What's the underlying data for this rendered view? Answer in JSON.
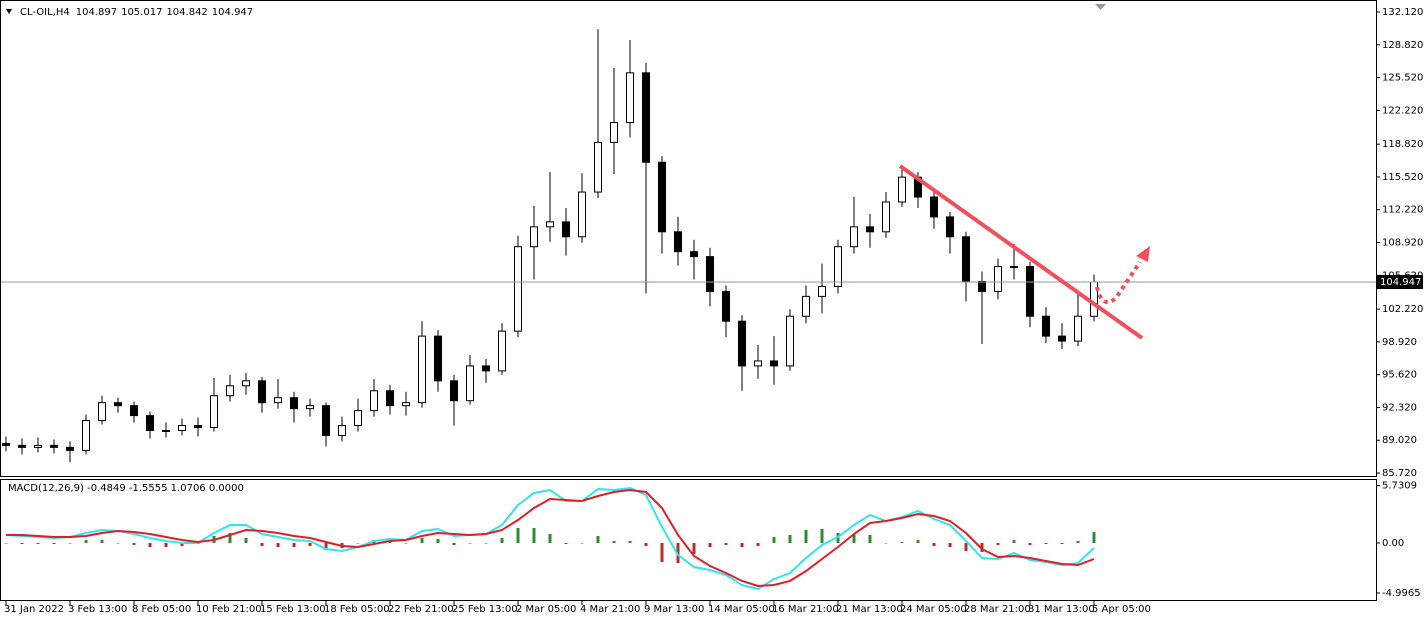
{
  "chart_data": [
    {
      "type": "candlestick",
      "title": "CL-OIL,H4",
      "quote": [
        104.897,
        105.017,
        104.842,
        104.947
      ],
      "open": [
        88.7,
        88.5,
        88.3,
        88.5,
        88.3,
        88.0,
        91.0,
        92.8,
        92.5,
        91.5,
        90.0,
        90.0,
        90.5,
        90.3,
        93.5,
        94.5,
        95.0,
        92.8,
        93.3,
        92.2,
        92.5,
        89.5,
        90.5,
        92.0,
        94.0,
        92.5,
        92.8,
        99.5,
        95.0,
        93.0,
        96.5,
        96.0,
        100.0,
        108.5,
        110.5,
        111.0,
        109.5,
        114.0,
        119.0,
        121.0,
        126.0,
        117.0,
        110.0,
        108.0,
        107.5,
        104.0,
        101.0,
        96.5,
        97.0,
        96.5,
        101.5,
        103.5,
        104.5,
        108.5,
        110.5,
        110.0,
        113.0,
        115.5,
        113.5,
        111.5,
        109.5,
        105.0,
        104.0,
        106.5,
        106.5,
        101.5,
        99.5,
        99.0,
        101.5
      ],
      "high": [
        89.4,
        89.2,
        89.3,
        89.1,
        88.9,
        91.6,
        93.5,
        93.3,
        92.9,
        91.9,
        90.8,
        91.2,
        91.3,
        95.3,
        95.6,
        95.8,
        95.4,
        95.2,
        93.9,
        93.2,
        92.8,
        91.4,
        93.2,
        95.2,
        94.6,
        93.9,
        101.0,
        100.1,
        95.6,
        97.6,
        97.2,
        100.8,
        109.6,
        112.6,
        116.0,
        112.4,
        115.9,
        130.4,
        126.5,
        129.3,
        127.0,
        117.6,
        111.5,
        109.2,
        108.4,
        104.6,
        101.6,
        98.6,
        99.5,
        102.2,
        104.6,
        106.8,
        109.2,
        113.5,
        111.8,
        114.0,
        116.7,
        116.0,
        114.2,
        112.0,
        110.0,
        106.0,
        107.3,
        108.8,
        107.0,
        102.4,
        100.8,
        104.0,
        105.7
      ],
      "low": [
        87.9,
        87.6,
        87.8,
        87.7,
        86.8,
        87.6,
        90.6,
        91.8,
        90.8,
        89.2,
        89.3,
        89.5,
        89.4,
        89.9,
        92.9,
        93.6,
        91.8,
        92.2,
        90.8,
        91.4,
        88.4,
        88.9,
        89.9,
        91.4,
        91.6,
        91.5,
        92.3,
        93.9,
        90.5,
        92.6,
        94.8,
        95.6,
        99.4,
        105.2,
        109.0,
        107.6,
        108.9,
        113.4,
        115.8,
        119.5,
        103.8,
        107.8,
        106.6,
        105.2,
        102.5,
        99.4,
        94.0,
        95.2,
        94.6,
        96.0,
        100.8,
        101.8,
        103.8,
        107.8,
        108.4,
        109.4,
        112.5,
        112.4,
        110.3,
        107.8,
        103.0,
        98.7,
        103.2,
        105.2,
        100.4,
        98.8,
        98.2,
        98.5,
        101.0
      ],
      "close": [
        88.5,
        88.3,
        88.5,
        88.3,
        88.0,
        91.0,
        92.8,
        92.5,
        91.5,
        90.0,
        90.0,
        90.5,
        90.3,
        93.5,
        94.5,
        95.0,
        92.8,
        93.3,
        92.2,
        92.5,
        89.5,
        90.5,
        92.0,
        94.0,
        92.5,
        92.8,
        99.5,
        95.0,
        93.0,
        96.5,
        96.0,
        100.0,
        108.5,
        110.5,
        111.0,
        109.5,
        114.0,
        119.0,
        121.0,
        126.0,
        117.0,
        110.0,
        108.0,
        107.5,
        104.0,
        101.0,
        96.5,
        97.0,
        96.5,
        101.5,
        103.5,
        104.5,
        108.5,
        110.5,
        110.0,
        113.0,
        115.5,
        113.5,
        111.5,
        109.5,
        105.0,
        104.0,
        106.5,
        106.5,
        101.5,
        99.5,
        99.0,
        101.5,
        104.947
      ],
      "last_price": 104.947,
      "ylim": [
        85.42,
        133.23
      ],
      "yticks": [
        {
          "value": 132.12,
          "label": "132.120"
        },
        {
          "value": 128.82,
          "label": "128.820"
        },
        {
          "value": 125.52,
          "label": "125.520"
        },
        {
          "value": 122.22,
          "label": "122.220"
        },
        {
          "value": 118.82,
          "label": "118.820"
        },
        {
          "value": 115.52,
          "label": "115.520"
        },
        {
          "value": 112.22,
          "label": "112.220"
        },
        {
          "value": 108.92,
          "label": "108.920"
        },
        {
          "value": 105.62,
          "label": "105.620"
        },
        {
          "value": 102.22,
          "label": "102.220"
        },
        {
          "value": 98.92,
          "label": "98.920"
        },
        {
          "value": 95.62,
          "label": "95.620"
        },
        {
          "value": 92.32,
          "label": "92.320"
        },
        {
          "value": 89.02,
          "label": "89.020"
        },
        {
          "value": 85.72,
          "label": "85.720"
        }
      ],
      "xticks": [
        {
          "value": 0,
          "label": "31 Jan 2022"
        },
        {
          "value": 4,
          "label": "3 Feb 13:00"
        },
        {
          "value": 8,
          "label": "8 Feb 05:00"
        },
        {
          "value": 12,
          "label": "10 Feb 21:00"
        },
        {
          "value": 16,
          "label": "15 Feb 13:00"
        },
        {
          "value": 20,
          "label": "18 Feb 05:00"
        },
        {
          "value": 24,
          "label": "22 Feb 21:00"
        },
        {
          "value": 28,
          "label": "25 Feb 13:00"
        },
        {
          "value": 32,
          "label": "2 Mar 05:00"
        },
        {
          "value": 36,
          "label": "4 Mar 21:00"
        },
        {
          "value": 40,
          "label": "9 Mar 13:00"
        },
        {
          "value": 44,
          "label": "14 Mar 05:00"
        },
        {
          "value": 48,
          "label": "16 Mar 21:00"
        },
        {
          "value": 52,
          "label": "21 Mar 13:00"
        },
        {
          "value": 56,
          "label": "24 Mar 05:00"
        },
        {
          "value": 60,
          "label": "28 Mar 21:00"
        },
        {
          "value": 64,
          "label": "31 Mar 13:00"
        },
        {
          "value": 68,
          "label": "5 Apr 05:00"
        }
      ],
      "grid": false
    },
    {
      "type": "indicator",
      "title": "MACD(12,26,9) -0.4849 -1.5555 1.0706 0.0000",
      "ylim": [
        -5.7,
        6.3
      ],
      "yticks": [
        5.7309,
        {
          "value": 0,
          "label": "0.00"
        },
        -4.9965
      ],
      "histogram": {
        "color": "#2e8b2e",
        "negative_color": "#c62828",
        "values": [
          0,
          -0.1,
          -0.1,
          -0.1,
          0,
          0.3,
          0.3,
          0,
          -0.2,
          -0.4,
          -0.4,
          -0.3,
          -0.1,
          0.7,
          1.0,
          0.5,
          -0.3,
          -0.4,
          -0.4,
          -0.3,
          -0.7,
          -0.5,
          0,
          0.3,
          0.2,
          0,
          0.5,
          0.4,
          -0.2,
          0,
          0,
          0.5,
          1.5,
          1.5,
          0.9,
          -0.1,
          0,
          0.7,
          0.2,
          0.2,
          -0.3,
          -1.9,
          -2.0,
          -1.1,
          -0.4,
          -0.2,
          -0.4,
          -0.3,
          0.6,
          0.8,
          1.3,
          1.4,
          1.0,
          0.9,
          0.8,
          0,
          0.1,
          0.3,
          -0.3,
          -0.4,
          -0.8,
          -0.9,
          -0.2,
          0.3,
          -0.2,
          -0.1,
          -0.1,
          0.2,
          1.1
        ]
      },
      "series": [
        {
          "color": "#2ee6f0",
          "values": [
            0.8,
            0.7,
            0.6,
            0.5,
            0.6,
            1.0,
            1.3,
            1.2,
            0.9,
            0.5,
            0.2,
            0.0,
            0.0,
            1.0,
            1.8,
            1.8,
            0.9,
            0.6,
            0.3,
            0.2,
            -0.6,
            -0.8,
            -0.4,
            0.2,
            0.4,
            0.3,
            1.2,
            1.4,
            0.7,
            0.8,
            0.9,
            1.8,
            3.8,
            5.0,
            5.3,
            4.2,
            4.2,
            5.4,
            5.3,
            5.5,
            4.8,
            1.6,
            -1.2,
            -2.4,
            -2.7,
            -3.2,
            -4.2,
            -4.6,
            -3.6,
            -3.0,
            -1.5,
            -0.2,
            0.6,
            1.8,
            2.8,
            2.2,
            2.6,
            3.2,
            2.4,
            1.8,
            0.2,
            -1.5,
            -1.6,
            -1.0,
            -1.7,
            -1.9,
            -2.2,
            -2.0,
            -0.5
          ]
        },
        {
          "color": "#e01e28",
          "values": [
            0.8,
            0.8,
            0.7,
            0.6,
            0.6,
            0.7,
            1.0,
            1.2,
            1.1,
            0.9,
            0.6,
            0.3,
            0.1,
            0.3,
            0.8,
            1.3,
            1.2,
            1.0,
            0.7,
            0.5,
            0.1,
            -0.3,
            -0.4,
            -0.1,
            0.2,
            0.3,
            0.7,
            1.0,
            0.9,
            0.8,
            0.9,
            1.3,
            2.3,
            3.5,
            4.4,
            4.3,
            4.2,
            4.7,
            5.1,
            5.3,
            5.1,
            3.5,
            0.8,
            -1.3,
            -2.3,
            -3.0,
            -3.8,
            -4.3,
            -4.2,
            -3.8,
            -2.8,
            -1.6,
            -0.4,
            0.9,
            2.0,
            2.2,
            2.5,
            2.9,
            2.7,
            2.2,
            1.0,
            -0.6,
            -1.4,
            -1.3,
            -1.5,
            -1.8,
            -2.1,
            -2.2,
            -1.6
          ]
        }
      ]
    }
  ]
}
